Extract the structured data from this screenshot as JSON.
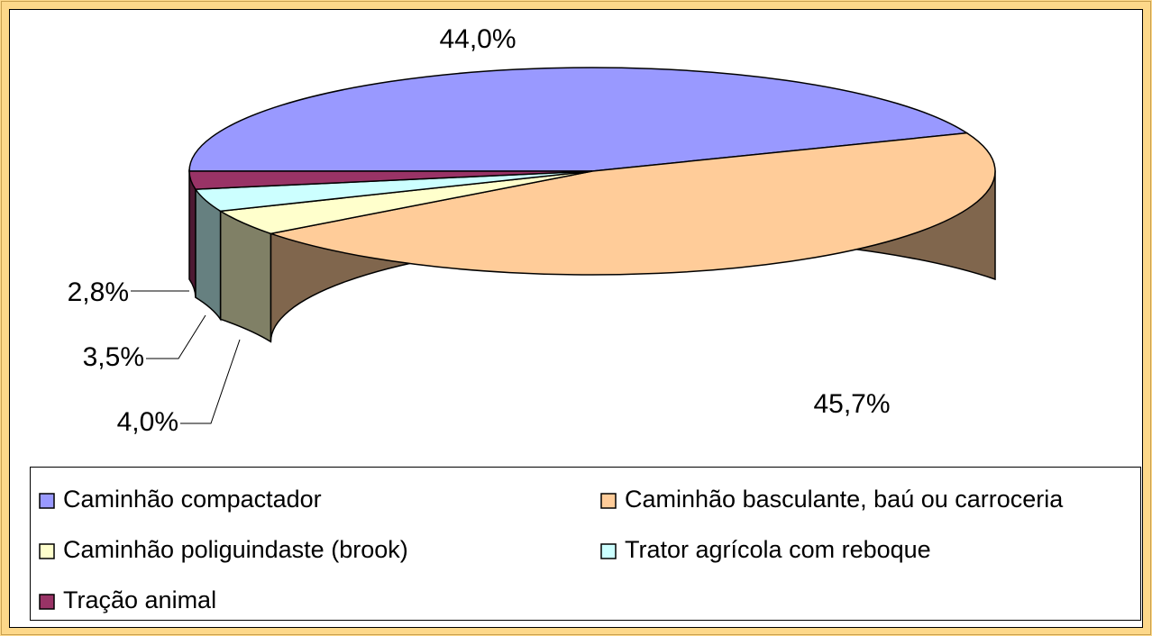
{
  "chart_data": {
    "type": "pie3d",
    "categories": [
      "Caminhão compactador",
      "Caminhão basculante, baú ou carroceria",
      "Caminhão poliguindaste (brook)",
      "Trator agrícola com reboque",
      "Tração animal"
    ],
    "values": [
      44.0,
      45.7,
      4.0,
      3.5,
      2.8
    ],
    "value_labels": [
      "44,0%",
      "45,7%",
      "4,0%",
      "3,5%",
      "2,8%"
    ],
    "colors": [
      "#9999ff",
      "#ffcc99",
      "#ffffcc",
      "#ccffff",
      "#993366"
    ],
    "legend": "bottom"
  }
}
